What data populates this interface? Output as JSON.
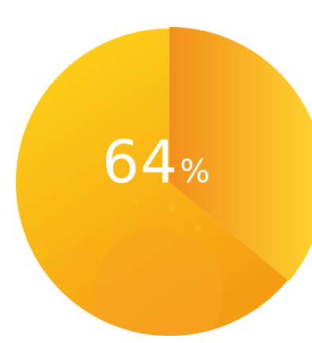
{
  "chart_data": {
    "type": "pie",
    "slices": [
      {
        "label": "",
        "value": 64,
        "color": "#f8c100"
      },
      {
        "label": "",
        "value": 36,
        "color": "#f8a521"
      }
    ],
    "title": "",
    "center_label": {
      "value": "64",
      "unit": "%"
    },
    "legend": "none",
    "grid": false
  },
  "colors": {
    "major_start": "#ffd619",
    "major_end": "#f59d12",
    "minor_start": "#f28f1c",
    "minor_end": "#ffd62f",
    "label": "#ffffff"
  }
}
